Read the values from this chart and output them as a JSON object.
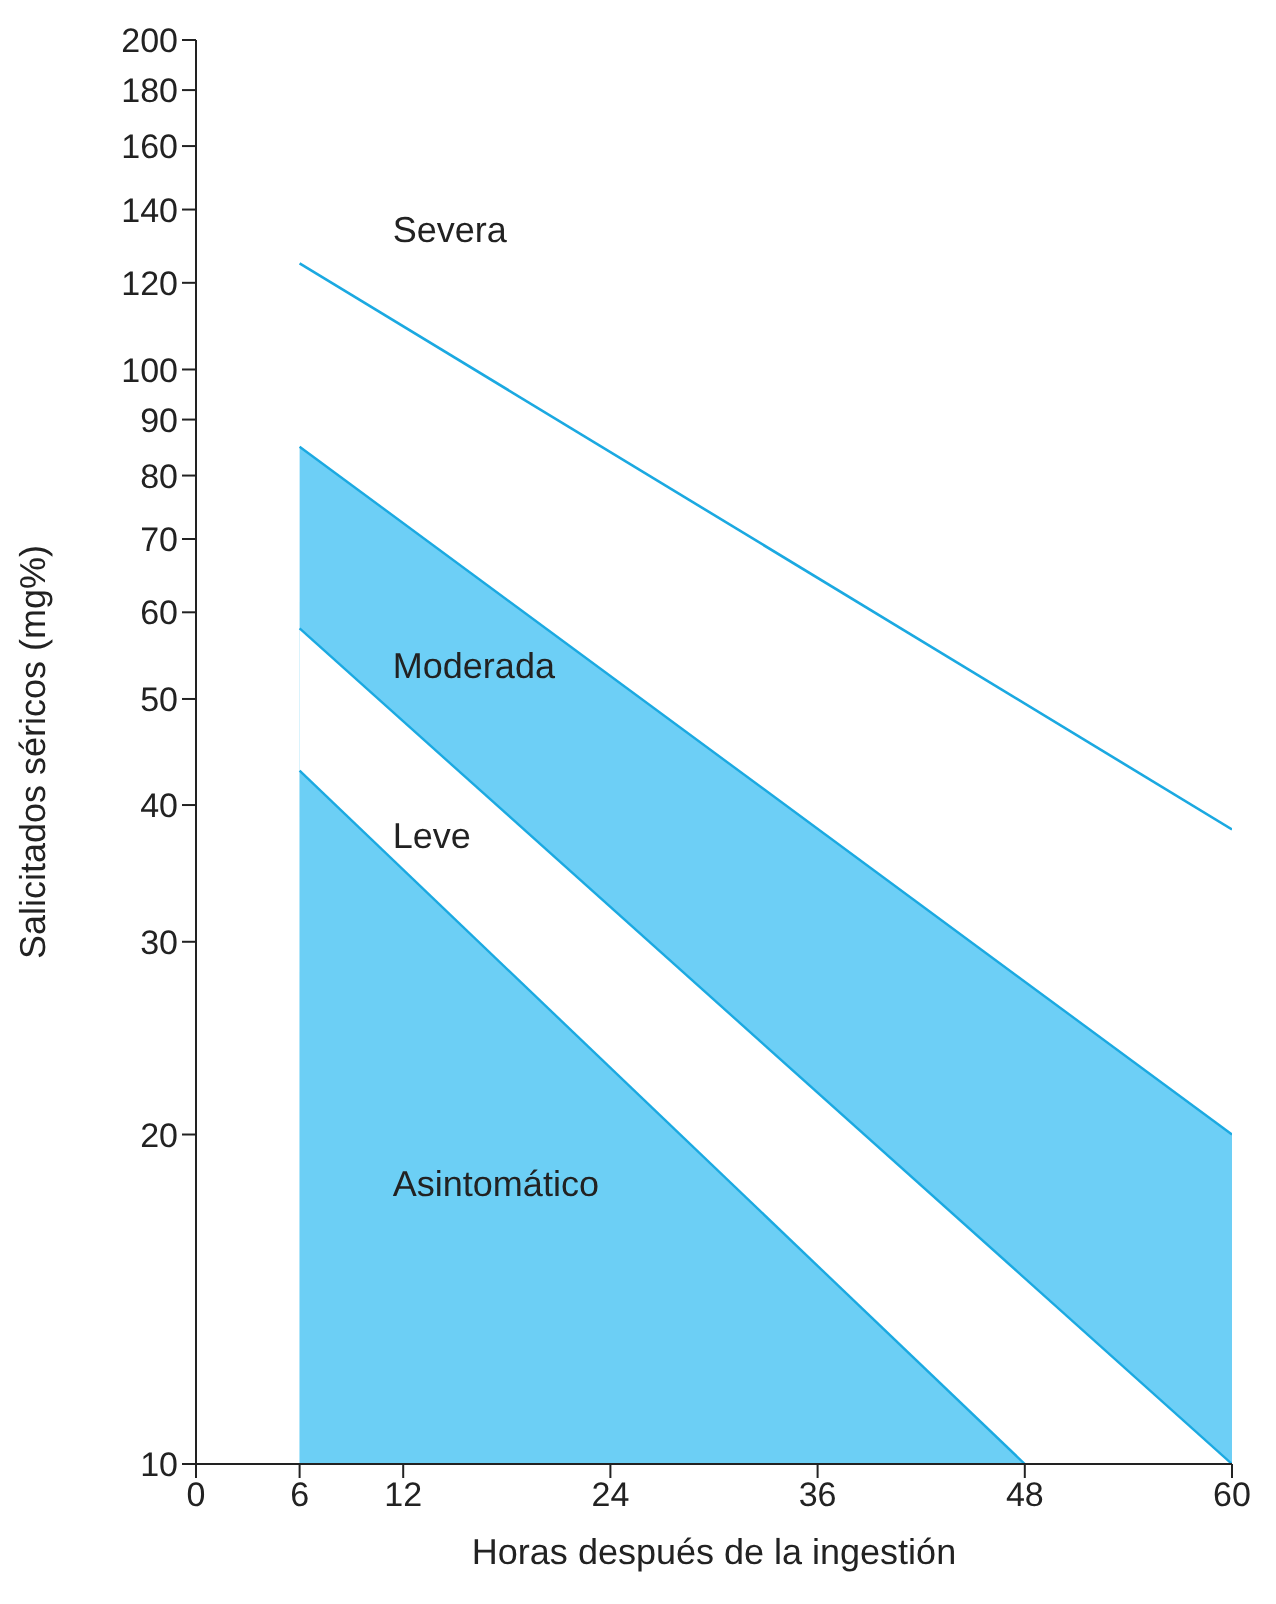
{
  "chart_data": {
    "type": "area",
    "xlabel": "Horas después de la ingestión",
    "ylabel": "Salicitados séricos (mg%)",
    "xlim": [
      0,
      60
    ],
    "xticks": [
      0,
      6,
      12,
      24,
      36,
      48,
      60
    ],
    "ylim": [
      10,
      200
    ],
    "yticks": [
      10,
      20,
      30,
      40,
      50,
      60,
      70,
      80,
      90,
      100,
      120,
      140,
      160,
      180,
      200
    ],
    "log": "y",
    "series": [
      {
        "type": "line",
        "x": [
          6,
          60
        ],
        "values": [
          125,
          38
        ],
        "color": "#1ba9e1"
      },
      {
        "x": [
          6,
          60
        ],
        "values": [
          85,
          20
        ],
        "color": "#6dcff6"
      },
      {
        "x": [
          6,
          60
        ],
        "values": [
          58,
          10
        ],
        "color": "#ffffff"
      },
      {
        "x": [
          6,
          48
        ],
        "values": [
          43,
          10
        ],
        "color": "#6ccff5"
      }
    ],
    "annotations": [
      "Severa",
      "Moderada",
      "Leve",
      "Asintomático"
    ],
    "grid": false
  }
}
